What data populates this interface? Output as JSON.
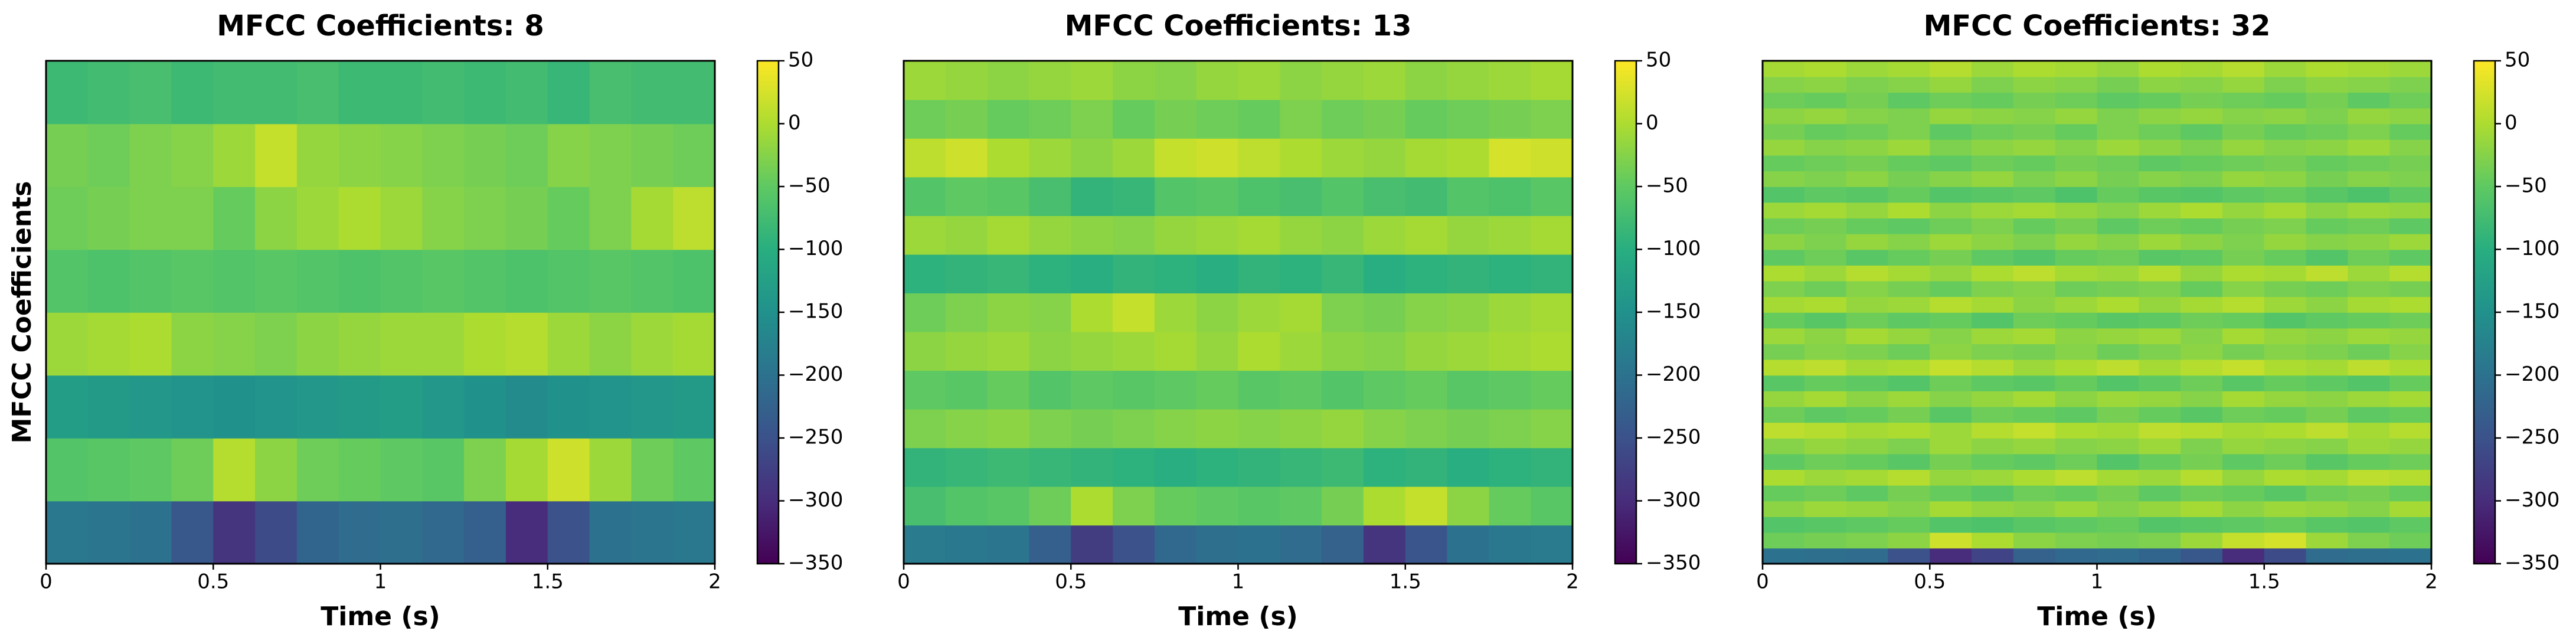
{
  "chart_data": [
    {
      "type": "heatmap",
      "title": "MFCC Coefficients: 8",
      "xlabel": "Time (s)",
      "ylabel": "MFCC Coefficients",
      "colormap": "viridis",
      "xlim": [
        0,
        2
      ],
      "xticks": [
        0,
        0.5,
        1,
        1.5,
        2
      ],
      "clim": [
        -350,
        50
      ],
      "cticks": [
        {
          "value": -350,
          "label": "−350"
        },
        {
          "value": -300,
          "label": "−300"
        },
        {
          "value": -250,
          "label": "−250"
        },
        {
          "value": -200,
          "label": "−200"
        },
        {
          "value": -150,
          "label": "−150"
        },
        {
          "value": -100,
          "label": "−100"
        },
        {
          "value": -50,
          "label": "−50"
        },
        0,
        50
      ],
      "z": [
        [
          -190,
          -195,
          -200,
          -240,
          -290,
          -260,
          -220,
          -210,
          -205,
          -215,
          -230,
          -300,
          -250,
          -200,
          -195,
          -190
        ],
        [
          -60,
          -55,
          -50,
          -40,
          5,
          -20,
          -40,
          -45,
          -50,
          -55,
          -30,
          -5,
          20,
          -10,
          -40,
          -50
        ],
        [
          -130,
          -135,
          -140,
          -145,
          -150,
          -145,
          -140,
          -135,
          -130,
          -140,
          -150,
          -160,
          -150,
          -145,
          -140,
          -135
        ],
        [
          -10,
          -5,
          0,
          -20,
          -25,
          -30,
          -20,
          -15,
          -10,
          -10,
          0,
          5,
          -10,
          -20,
          -10,
          -5
        ],
        [
          -60,
          -65,
          -60,
          -55,
          -60,
          -55,
          -60,
          -65,
          -60,
          -55,
          -60,
          -65,
          -60,
          -55,
          -60,
          -65
        ],
        [
          -40,
          -35,
          -30,
          -30,
          -45,
          -20,
          -10,
          0,
          -10,
          -25,
          -30,
          -35,
          -45,
          -30,
          -5,
          10
        ],
        [
          -35,
          -40,
          -30,
          -25,
          -10,
          15,
          -15,
          -20,
          -25,
          -30,
          -35,
          -40,
          -25,
          -30,
          -35,
          -40
        ],
        [
          -80,
          -75,
          -70,
          -80,
          -75,
          -75,
          -70,
          -80,
          -80,
          -75,
          -80,
          -75,
          -85,
          -70,
          -75,
          -75
        ]
      ]
    },
    {
      "type": "heatmap",
      "title": "MFCC Coefficients: 13",
      "xlabel": "Time (s)",
      "colormap": "viridis",
      "xlim": [
        0,
        2
      ],
      "xticks": [
        0,
        0.5,
        1,
        1.5,
        2
      ],
      "clim": [
        -350,
        50
      ],
      "cticks": [
        {
          "value": -350,
          "label": "−350"
        },
        {
          "value": -300,
          "label": "−300"
        },
        {
          "value": -250,
          "label": "−250"
        },
        {
          "value": -200,
          "label": "−200"
        },
        {
          "value": -150,
          "label": "−150"
        },
        {
          "value": -100,
          "label": "−100"
        },
        {
          "value": -50,
          "label": "−50"
        },
        0,
        50
      ],
      "z": [
        [
          -185,
          -190,
          -195,
          -230,
          -280,
          -250,
          -215,
          -205,
          -200,
          -210,
          -225,
          -290,
          -245,
          -200,
          -190,
          -185
        ],
        [
          -70,
          -60,
          -55,
          -40,
          0,
          -30,
          -45,
          -50,
          -55,
          -50,
          -35,
          0,
          15,
          -20,
          -45,
          -55
        ],
        [
          -90,
          -85,
          -80,
          -85,
          -90,
          -95,
          -100,
          -95,
          -90,
          -85,
          -80,
          -95,
          -90,
          -100,
          -95,
          -90
        ],
        [
          -30,
          -25,
          -20,
          -30,
          -35,
          -30,
          -25,
          -20,
          -25,
          -20,
          -15,
          -25,
          -30,
          -35,
          -30,
          -25
        ],
        [
          -50,
          -55,
          -45,
          -60,
          -50,
          -55,
          -50,
          -45,
          -55,
          -50,
          -60,
          -50,
          -45,
          -55,
          -50,
          -45
        ],
        [
          -20,
          -15,
          -10,
          -20,
          -15,
          -10,
          -5,
          -15,
          0,
          -10,
          -20,
          -25,
          -15,
          -10,
          -5,
          0
        ],
        [
          -40,
          -30,
          -20,
          -25,
          0,
          15,
          -10,
          -20,
          -10,
          -5,
          -30,
          -35,
          -25,
          -20,
          -10,
          -5
        ],
        [
          -95,
          -90,
          -85,
          -95,
          -100,
          -90,
          -95,
          -100,
          -90,
          -95,
          -85,
          -100,
          -95,
          -90,
          -95,
          -90
        ],
        [
          -10,
          -15,
          -5,
          -15,
          -20,
          -25,
          -15,
          -10,
          -5,
          -15,
          -20,
          -10,
          -5,
          -15,
          -10,
          -5
        ],
        [
          -60,
          -50,
          -55,
          -70,
          -90,
          -85,
          -60,
          -55,
          -65,
          -70,
          -60,
          -70,
          -75,
          -60,
          -65,
          -55
        ],
        [
          10,
          20,
          0,
          -10,
          -20,
          -10,
          15,
          20,
          10,
          0,
          -10,
          -15,
          -5,
          0,
          25,
          20
        ],
        [
          -40,
          -35,
          -45,
          -40,
          -30,
          -45,
          -35,
          -40,
          -45,
          -30,
          -40,
          -35,
          -45,
          -40,
          -35,
          -30
        ],
        [
          -10,
          -15,
          -20,
          -15,
          -10,
          -20,
          -25,
          -15,
          -10,
          -20,
          -15,
          -10,
          -20,
          -15,
          -10,
          -5
        ]
      ]
    },
    {
      "type": "heatmap",
      "title": "MFCC Coefficients: 32",
      "xlabel": "Time (s)",
      "colormap": "viridis",
      "xlim": [
        0,
        2
      ],
      "xticks": [
        0,
        0.5,
        1,
        1.5,
        2
      ],
      "clim": [
        -350,
        50
      ],
      "cticks": [
        {
          "value": -350,
          "label": "−350"
        },
        {
          "value": -300,
          "label": "−300"
        },
        {
          "value": -250,
          "label": "−250"
        },
        {
          "value": -200,
          "label": "−200"
        },
        {
          "value": -150,
          "label": "−150"
        },
        {
          "value": -100,
          "label": "−100"
        },
        {
          "value": -50,
          "label": "−50"
        },
        0,
        50
      ],
      "z": [
        [
          -200,
          -205,
          -210,
          -250,
          -300,
          -270,
          -225,
          -215,
          -210,
          -220,
          -240,
          -300,
          -260,
          -210,
          -205,
          -200
        ],
        [
          -40,
          -35,
          -30,
          -20,
          20,
          0,
          -20,
          -30,
          -35,
          -30,
          -10,
          15,
          25,
          -10,
          -30,
          -40
        ],
        [
          -60,
          -55,
          -50,
          -45,
          -60,
          -65,
          -55,
          -50,
          -45,
          -60,
          -55,
          -50,
          -45,
          -55,
          -60,
          -50
        ],
        [
          -20,
          -10,
          -15,
          -25,
          -5,
          -15,
          -20,
          -10,
          -25,
          -15,
          -5,
          -20,
          -10,
          -15,
          -25,
          -5
        ],
        [
          -45,
          -40,
          -50,
          -35,
          -45,
          -55,
          -40,
          -45,
          -35,
          -50,
          -40,
          -45,
          -55,
          -40,
          -35,
          -45
        ],
        [
          0,
          -10,
          -5,
          5,
          -15,
          -10,
          0,
          10,
          -5,
          -10,
          5,
          -15,
          0,
          -5,
          10,
          5
        ],
        [
          -50,
          -40,
          -45,
          -55,
          -35,
          -45,
          -50,
          -40,
          -60,
          -45,
          -35,
          -50,
          -40,
          -55,
          -45,
          -40
        ],
        [
          -25,
          -15,
          -20,
          -30,
          -10,
          -20,
          -15,
          -25,
          -20,
          -10,
          -30,
          -15,
          -20,
          -25,
          -10,
          -15
        ],
        [
          10,
          5,
          -5,
          0,
          -10,
          5,
          15,
          0,
          -5,
          10,
          5,
          -5,
          0,
          10,
          -5,
          5
        ],
        [
          -40,
          -50,
          -45,
          -35,
          -55,
          -40,
          -45,
          -50,
          -35,
          -45,
          -55,
          -40,
          -45,
          -35,
          -50,
          -45
        ],
        [
          -15,
          -5,
          -20,
          -10,
          -25,
          -15,
          -5,
          -20,
          -10,
          -15,
          -25,
          -5,
          -15,
          -20,
          -10,
          -5
        ],
        [
          -55,
          -45,
          -50,
          -60,
          -40,
          -50,
          -55,
          -45,
          -60,
          -50,
          -40,
          -55,
          -45,
          -50,
          -60,
          -45
        ],
        [
          5,
          10,
          -5,
          0,
          15,
          5,
          -10,
          0,
          10,
          -5,
          5,
          15,
          0,
          -5,
          10,
          0
        ],
        [
          -35,
          -25,
          -30,
          -40,
          -20,
          -30,
          -35,
          -25,
          -40,
          -30,
          -20,
          -35,
          -25,
          -30,
          -40,
          -25
        ],
        [
          -10,
          -20,
          -5,
          -15,
          -25,
          -10,
          -5,
          -20,
          -15,
          -10,
          -25,
          -5,
          -15,
          -20,
          -10,
          -15
        ],
        [
          -45,
          -55,
          -40,
          -50,
          -45,
          -60,
          -40,
          -45,
          -55,
          -50,
          -40,
          -45,
          -60,
          -50,
          -45,
          -40
        ],
        [
          -5,
          0,
          -15,
          -10,
          5,
          -5,
          -20,
          -10,
          0,
          -15,
          -5,
          5,
          -10,
          -20,
          -5,
          0
        ],
        [
          -30,
          -40,
          -25,
          -35,
          -45,
          -30,
          -25,
          -40,
          -35,
          -30,
          -45,
          -25,
          -35,
          -40,
          -30,
          -35
        ],
        [
          0,
          -10,
          5,
          -5,
          -15,
          0,
          10,
          -5,
          -10,
          5,
          -15,
          0,
          -5,
          10,
          -10,
          5
        ],
        [
          -50,
          -40,
          -55,
          -45,
          -35,
          -50,
          -60,
          -45,
          -40,
          -55,
          -50,
          -35,
          -45,
          -60,
          -40,
          -50
        ],
        [
          -20,
          -30,
          -15,
          -25,
          -10,
          -20,
          -30,
          -15,
          -25,
          -10,
          -20,
          -30,
          -15,
          -25,
          -20,
          -10
        ],
        [
          -40,
          -35,
          -45,
          -50,
          -40,
          -30,
          -45,
          -35,
          -50,
          -40,
          -45,
          -35,
          -30,
          -45,
          -40,
          -50
        ],
        [
          -10,
          -5,
          -15,
          0,
          -20,
          -10,
          -5,
          -15,
          -25,
          -10,
          0,
          -15,
          -5,
          -20,
          -10,
          -15
        ],
        [
          -60,
          -50,
          -55,
          -45,
          -60,
          -55,
          -50,
          -65,
          -45,
          -55,
          -60,
          -50,
          -45,
          -55,
          -65,
          -50
        ],
        [
          -25,
          -30,
          -20,
          -35,
          -25,
          -15,
          -30,
          -20,
          -35,
          -25,
          -30,
          -15,
          -20,
          -35,
          -25,
          -30
        ],
        [
          -45,
          -40,
          -35,
          -45,
          -50,
          -40,
          -45,
          -35,
          -40,
          -50,
          -45,
          -40,
          -35,
          -45,
          -40,
          -35
        ],
        [
          -15,
          -25,
          -20,
          -10,
          -30,
          -20,
          -15,
          -25,
          -10,
          -20,
          -30,
          -15,
          -25,
          -20,
          -10,
          -25
        ],
        [
          -35,
          -45,
          -40,
          -30,
          -50,
          -40,
          -35,
          -45,
          -30,
          -40,
          -50,
          -35,
          -45,
          -40,
          -30,
          -45
        ],
        [
          -20,
          -15,
          -25,
          -30,
          -15,
          -20,
          -25,
          -15,
          -30,
          -20,
          -15,
          -25,
          -20,
          -30,
          -15,
          -20
        ],
        [
          -40,
          -45,
          -35,
          -50,
          -40,
          -45,
          -35,
          -40,
          -50,
          -45,
          -35,
          -40,
          -45,
          -35,
          -50,
          -40
        ],
        [
          -25,
          -20,
          -30,
          -25,
          -15,
          -30,
          -20,
          -25,
          -35,
          -20,
          -25,
          -15,
          -30,
          -20,
          -25,
          -30
        ],
        [
          -5,
          0,
          -10,
          -5,
          5,
          -10,
          0,
          -5,
          -15,
          0,
          -5,
          5,
          -10,
          0,
          -5,
          -10
        ]
      ]
    }
  ]
}
